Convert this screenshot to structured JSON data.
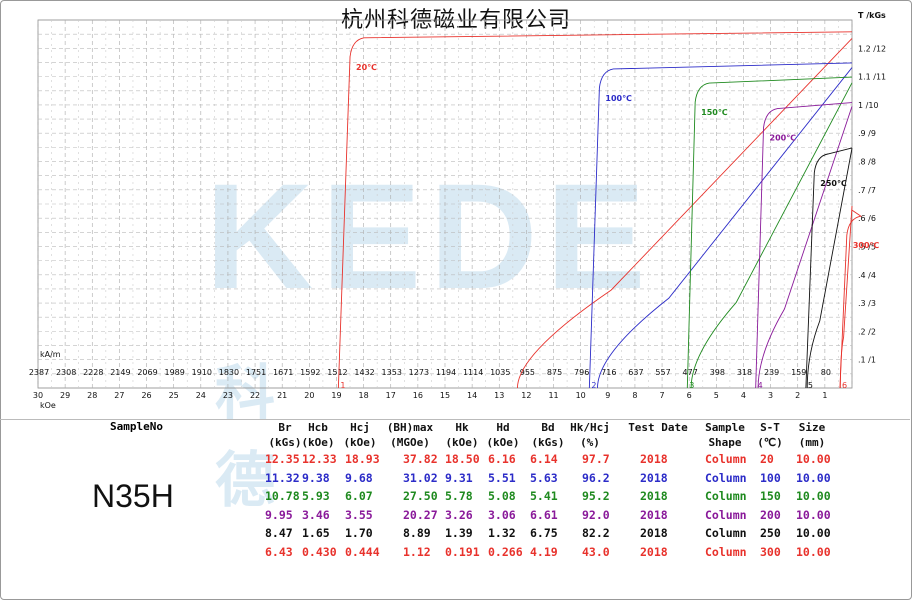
{
  "company": "杭州科德磁业有限公司",
  "watermark": "KEDE",
  "watermark_cn": [
    "科",
    "德"
  ],
  "chart_data": {
    "type": "line",
    "title": "",
    "x_axis": {
      "unit_top": "kA/m",
      "unit_bottom": "kOe",
      "range_koe": [
        -30,
        0
      ],
      "tick_labels_kam": [
        "2387",
        "2308",
        "2228",
        "2149",
        "2069",
        "1989",
        "1910",
        "1830",
        "1751",
        "1671",
        "1592",
        "1512",
        "1432",
        "1353",
        "1273",
        "1194",
        "1114",
        "1035",
        "955",
        "875",
        "796",
        "716",
        "637",
        "557",
        "477",
        "398",
        "318",
        "239",
        "159",
        "80"
      ],
      "tick_labels_koe": [
        "30",
        "29",
        "28",
        "27",
        "26",
        "25",
        "24",
        "23",
        "22",
        "21",
        "20",
        "19",
        "18",
        "17",
        "16",
        "15",
        "14",
        "13",
        "12",
        "11",
        "10",
        "9",
        "8",
        "7",
        "6",
        "5",
        "4",
        "3",
        "2",
        "1"
      ]
    },
    "y_axis": {
      "unit": "T /kGs",
      "range_t": [
        0,
        1.3
      ],
      "tick_labels": [
        ".1 /1",
        ".2 /2",
        ".3 /3",
        ".4 /4",
        ".5 /5",
        ".6 /6",
        ".7 /7",
        ".8 /8",
        ".9 /9",
        "1 /10",
        "1.1 /11",
        "1.2 /12"
      ]
    },
    "grid": true,
    "series": [
      {
        "name": "20℃",
        "color": "#e8322c",
        "marker": "1",
        "hcj": 18.93,
        "hk": 18.5,
        "br": 12.35,
        "knee": 1.23
      },
      {
        "name": "100℃",
        "color": "#2c2cc8",
        "marker": "2",
        "hcj": 9.68,
        "hk": 9.31,
        "br": 11.32,
        "knee": 1.12
      },
      {
        "name": "150℃",
        "color": "#1f8a1f",
        "marker": "3",
        "hcj": 6.07,
        "hk": 5.78,
        "br": 10.78,
        "knee": 1.07
      },
      {
        "name": "200℃",
        "color": "#8a1a9a",
        "marker": "4",
        "hcj": 3.55,
        "hk": 3.26,
        "br": 9.95,
        "knee": 0.98
      },
      {
        "name": "250℃",
        "color": "#111111",
        "marker": "5",
        "hcj": 1.7,
        "hk": 1.39,
        "br": 8.47,
        "knee": 0.82
      },
      {
        "name": "300℃",
        "color": "#e8322c",
        "marker": "6",
        "hcj": 0.444,
        "hk": 0.191,
        "br": 6.43,
        "knee": 0.6
      }
    ]
  },
  "table": {
    "sample_label": "SampleNo",
    "grade": "N35H",
    "headers": [
      [
        "Br",
        "(kGs)"
      ],
      [
        "Hcb",
        "(kOe)"
      ],
      [
        "Hcj",
        "(kOe)"
      ],
      [
        "(BH)max",
        "(MGOe)"
      ],
      [
        "Hk",
        "(kOe)"
      ],
      [
        "Hd",
        "(kOe)"
      ],
      [
        "Bd",
        "(kGs)"
      ],
      [
        "Hk/Hcj",
        "(%)"
      ],
      [
        "Test Date",
        ""
      ],
      [
        "Sample",
        "Shape"
      ],
      [
        "S-T",
        "(℃)"
      ],
      [
        "Size",
        "(mm)"
      ]
    ],
    "rows": [
      {
        "color": "#e8322c",
        "values": [
          "12.35",
          "12.33",
          "18.93",
          "37.82",
          "18.50",
          "6.16",
          "6.14",
          "97.7",
          "2018",
          "Column",
          "20",
          "10.00"
        ]
      },
      {
        "color": "#2c2cc8",
        "values": [
          "11.32",
          "9.38",
          "9.68",
          "31.02",
          "9.31",
          "5.51",
          "5.63",
          "96.2",
          "2018",
          "Column",
          "100",
          "10.00"
        ]
      },
      {
        "color": "#1f8a1f",
        "values": [
          "10.78",
          "5.93",
          "6.07",
          "27.50",
          "5.78",
          "5.08",
          "5.41",
          "95.2",
          "2018",
          "Column",
          "150",
          "10.00"
        ]
      },
      {
        "color": "#8a1a9a",
        "values": [
          "9.95",
          "3.46",
          "3.55",
          "20.27",
          "3.26",
          "3.06",
          "6.61",
          "92.0",
          "2018",
          "Column",
          "200",
          "10.00"
        ]
      },
      {
        "color": "#111111",
        "values": [
          "8.47",
          "1.65",
          "1.70",
          "8.89",
          "1.39",
          "1.32",
          "6.75",
          "82.2",
          "2018",
          "Column",
          "250",
          "10.00"
        ]
      },
      {
        "color": "#e8322c",
        "values": [
          "6.43",
          "0.430",
          "0.444",
          "1.12",
          "0.191",
          "0.266",
          "4.19",
          "43.0",
          "2018",
          "Column",
          "300",
          "10.00"
        ]
      }
    ]
  }
}
